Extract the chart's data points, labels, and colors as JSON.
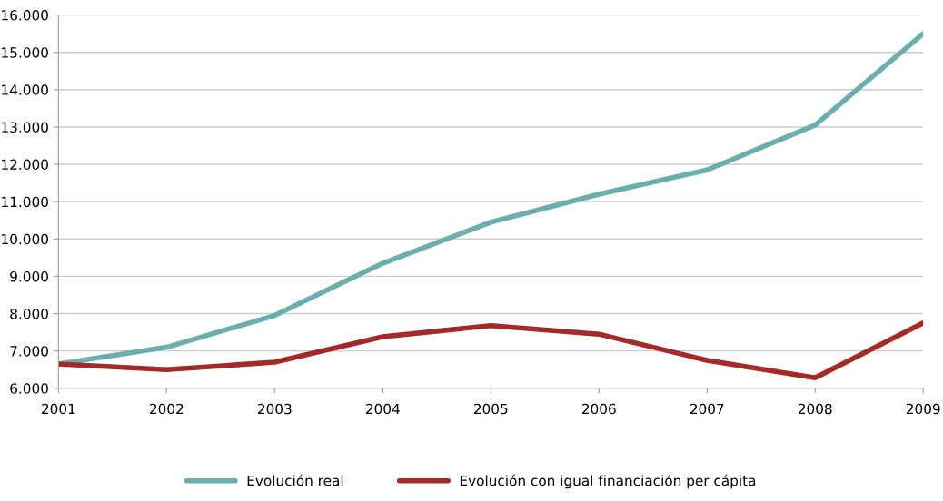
{
  "chart_data": {
    "type": "line",
    "x": [
      2001,
      2002,
      2003,
      2004,
      2005,
      2006,
      2007,
      2008,
      2009
    ],
    "series": [
      {
        "name": "Evolución real",
        "color": "#6aaeae",
        "values": [
          6650,
          7100,
          7950,
          9350,
          10450,
          11200,
          11850,
          13050,
          15500
        ]
      },
      {
        "name": "Evolución con igual financiación per cápita",
        "color": "#a32a26",
        "values": [
          6650,
          6500,
          6700,
          7380,
          7680,
          7450,
          6750,
          6280,
          7750
        ]
      }
    ],
    "xlim": [
      2001,
      2009
    ],
    "xticks": [
      2001,
      2002,
      2003,
      2004,
      2005,
      2006,
      2007,
      2008,
      2009
    ],
    "ylim": [
      6000,
      16000
    ],
    "yticks": [
      {
        "value": 6000,
        "label": "6.000"
      },
      {
        "value": 7000,
        "label": "7.000"
      },
      {
        "value": 8000,
        "label": "8.000"
      },
      {
        "value": 9000,
        "label": "9.000"
      },
      {
        "value": 10000,
        "label": "10.000"
      },
      {
        "value": 11000,
        "label": "11.000"
      },
      {
        "value": 12000,
        "label": "12.000"
      },
      {
        "value": 13000,
        "label": "13.000"
      },
      {
        "value": 14000,
        "label": "14.000"
      },
      {
        "value": 15000,
        "label": "15.000"
      },
      {
        "value": 16000,
        "label": "16.000"
      }
    ],
    "grid": "y",
    "legend": "bottom",
    "marker": "none",
    "line_style": "solid"
  }
}
